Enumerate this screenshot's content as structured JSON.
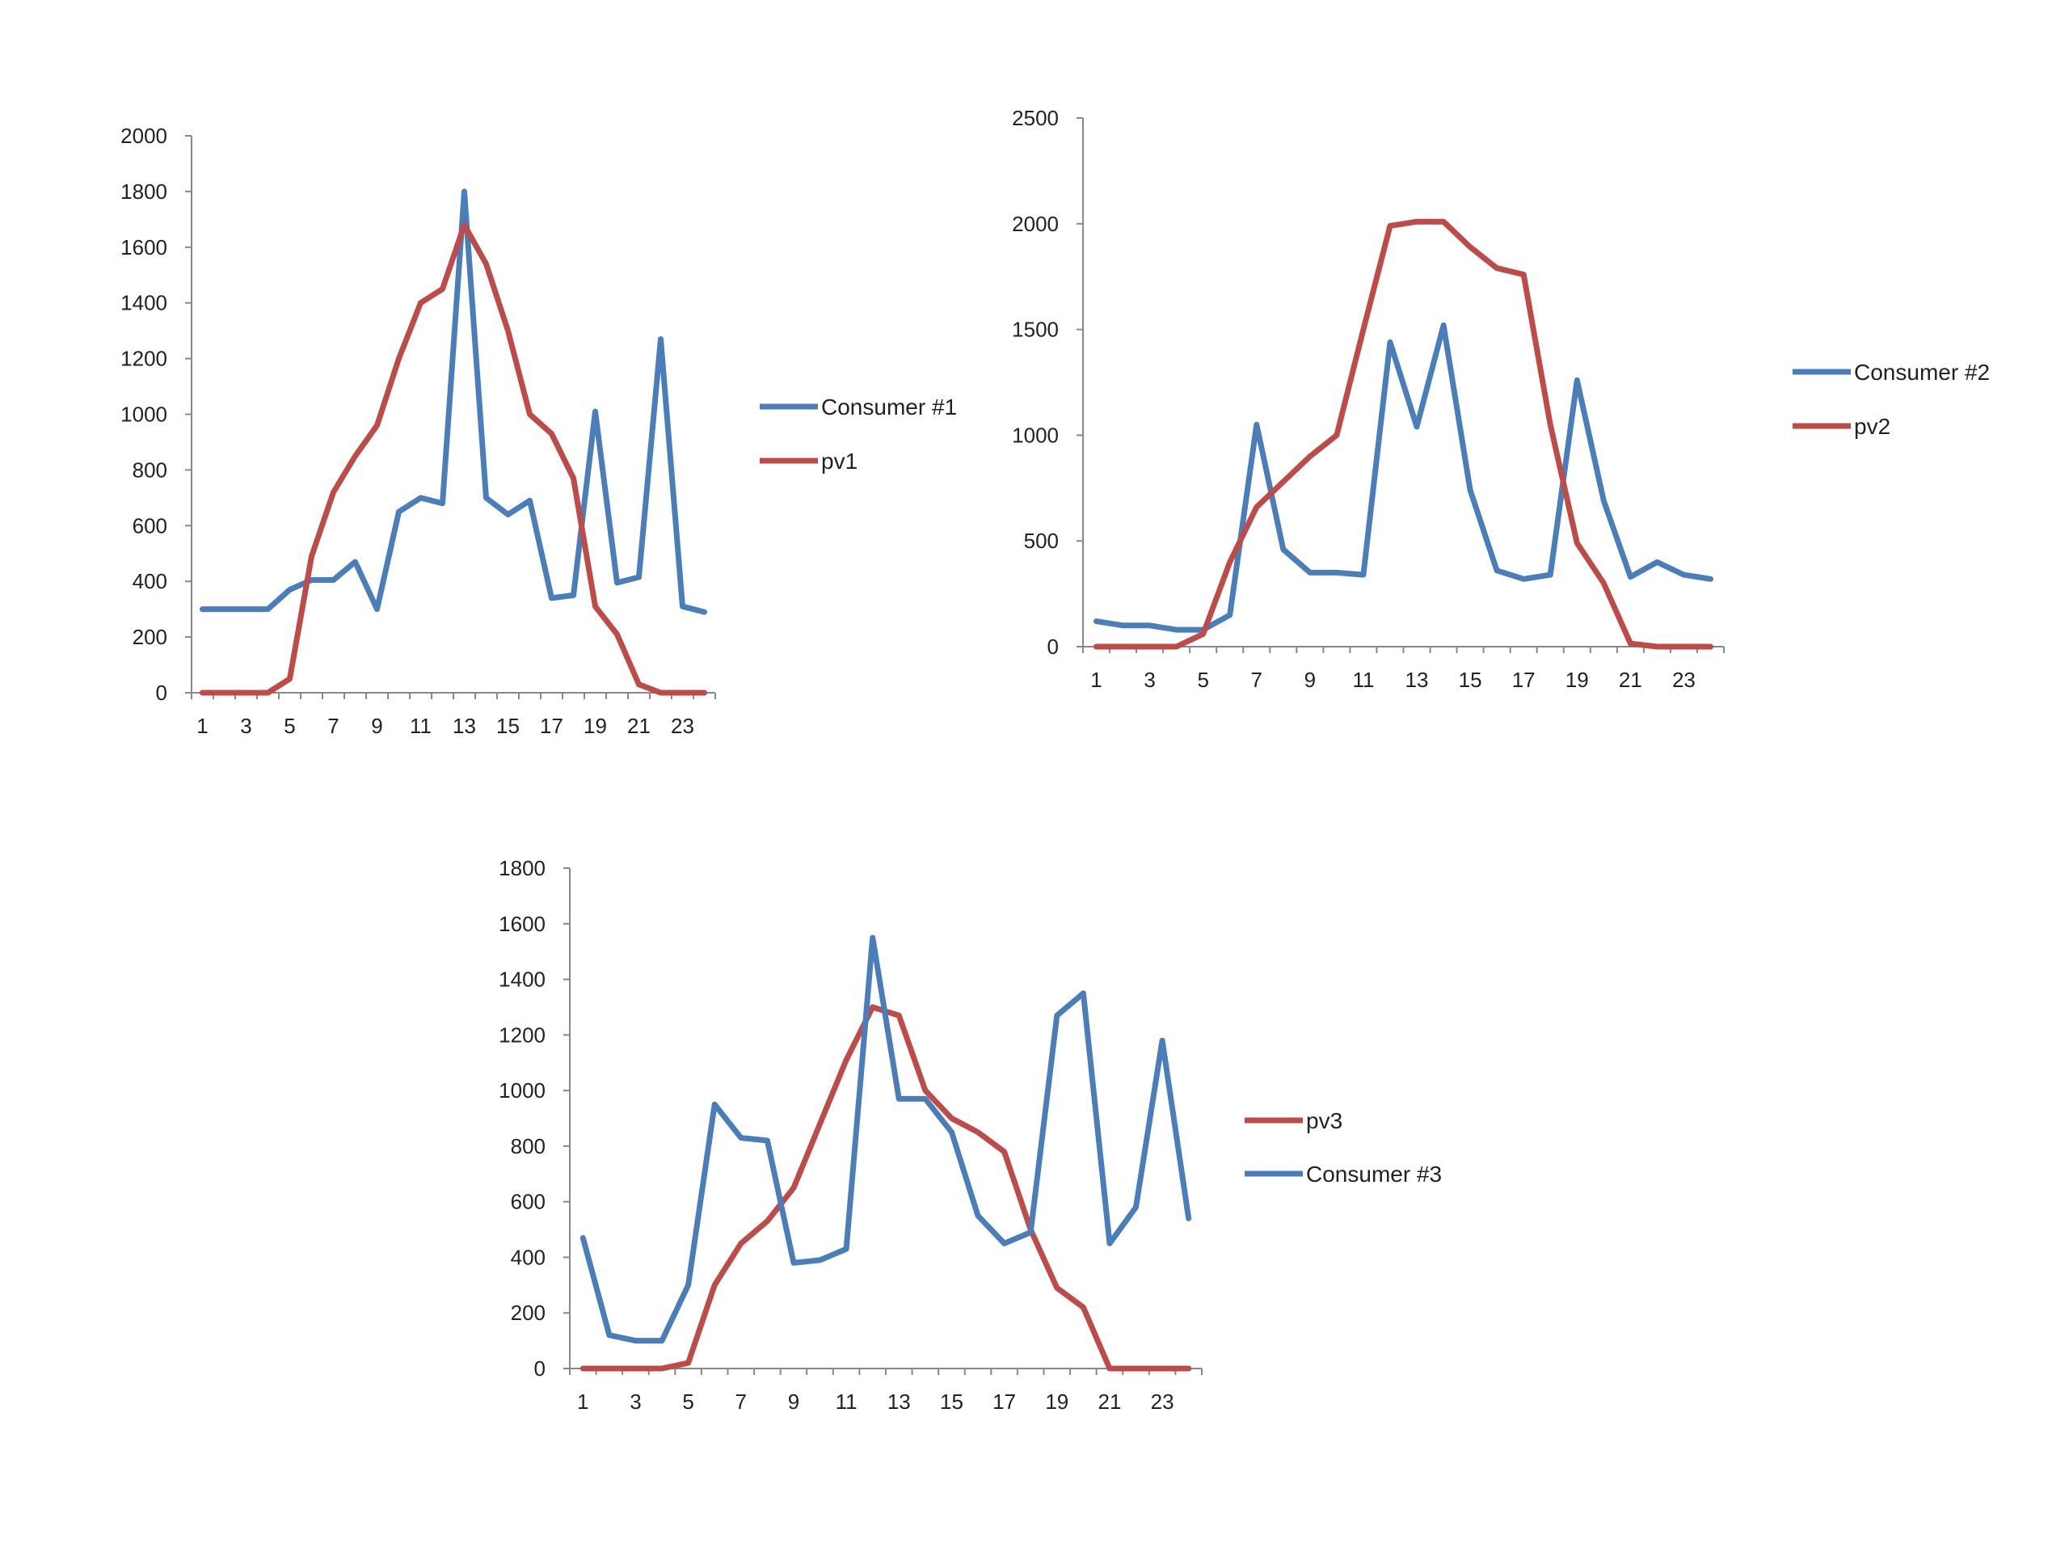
{
  "colors": {
    "consumer": "#4a7ebb",
    "pv": "#be4b48",
    "axis": "#888888",
    "text": "#222222"
  },
  "chart_data": [
    {
      "type": "line",
      "x": [
        1,
        2,
        3,
        4,
        5,
        6,
        7,
        8,
        9,
        10,
        11,
        12,
        13,
        14,
        15,
        16,
        17,
        18,
        19,
        20,
        21,
        22,
        23,
        24
      ],
      "xticks": [
        "1",
        "3",
        "5",
        "7",
        "9",
        "11",
        "13",
        "15",
        "17",
        "19",
        "21",
        "23"
      ],
      "yticks": [
        "0",
        "200",
        "400",
        "600",
        "800",
        "1000",
        "1200",
        "1400",
        "1600",
        "1800",
        "2000"
      ],
      "ylim": [
        0,
        2000
      ],
      "legend_position": "right",
      "series": [
        {
          "name": "Consumer #1",
          "color": "#4a7ebb",
          "values": [
            300,
            300,
            300,
            300,
            370,
            405,
            405,
            470,
            300,
            650,
            700,
            680,
            1800,
            700,
            640,
            690,
            340,
            350,
            1010,
            395,
            415,
            1270,
            310,
            290
          ]
        },
        {
          "name": "pv1",
          "color": "#be4b48",
          "values": [
            0,
            0,
            0,
            0,
            50,
            490,
            720,
            850,
            960,
            1200,
            1400,
            1450,
            1680,
            1540,
            1300,
            1000,
            930,
            770,
            310,
            210,
            30,
            0,
            0,
            0
          ]
        }
      ]
    },
    {
      "type": "line",
      "x": [
        1,
        2,
        3,
        4,
        5,
        6,
        7,
        8,
        9,
        10,
        11,
        12,
        13,
        14,
        15,
        16,
        17,
        18,
        19,
        20,
        21,
        22,
        23,
        24
      ],
      "xticks": [
        "1",
        "3",
        "5",
        "7",
        "9",
        "11",
        "13",
        "15",
        "17",
        "19",
        "21",
        "23"
      ],
      "yticks": [
        "0",
        "500",
        "1000",
        "1500",
        "2000",
        "2500"
      ],
      "ylim": [
        0,
        2500
      ],
      "legend_position": "right",
      "series": [
        {
          "name": "Consumer #2",
          "color": "#4a7ebb",
          "values": [
            120,
            100,
            100,
            80,
            80,
            150,
            1050,
            460,
            350,
            350,
            340,
            1440,
            1040,
            1520,
            740,
            360,
            320,
            340,
            1260,
            690,
            330,
            400,
            340,
            320
          ]
        },
        {
          "name": "pv2",
          "color": "#be4b48",
          "values": [
            0,
            0,
            0,
            0,
            60,
            400,
            660,
            780,
            900,
            1000,
            1500,
            1990,
            2010,
            2010,
            1890,
            1790,
            1760,
            1050,
            490,
            300,
            15,
            0,
            0,
            0
          ]
        }
      ]
    },
    {
      "type": "line",
      "x": [
        1,
        2,
        3,
        4,
        5,
        6,
        7,
        8,
        9,
        10,
        11,
        12,
        13,
        14,
        15,
        16,
        17,
        18,
        19,
        20,
        21,
        22,
        23,
        24
      ],
      "xticks": [
        "1",
        "3",
        "5",
        "7",
        "9",
        "11",
        "13",
        "15",
        "17",
        "19",
        "21",
        "23"
      ],
      "yticks": [
        "0",
        "200",
        "400",
        "600",
        "800",
        "1000",
        "1200",
        "1400",
        "1600",
        "1800"
      ],
      "ylim": [
        0,
        1800
      ],
      "legend_position": "right",
      "series": [
        {
          "name": "pv3",
          "color": "#be4b48",
          "values": [
            0,
            0,
            0,
            0,
            20,
            300,
            450,
            530,
            650,
            880,
            1110,
            1300,
            1270,
            1000,
            900,
            850,
            780,
            500,
            290,
            220,
            0,
            0,
            0,
            0
          ]
        },
        {
          "name": "Consumer #3",
          "color": "#4a7ebb",
          "values": [
            470,
            120,
            100,
            100,
            300,
            950,
            830,
            820,
            380,
            390,
            430,
            1550,
            970,
            970,
            850,
            550,
            450,
            490,
            1270,
            1350,
            450,
            580,
            1180,
            540
          ]
        }
      ]
    }
  ]
}
